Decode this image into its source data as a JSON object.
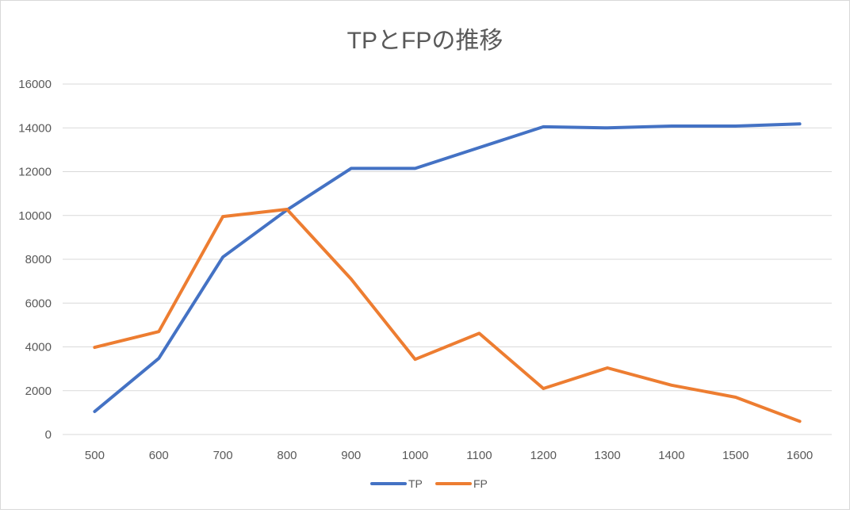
{
  "chart_data": {
    "type": "line",
    "title": "TPとFPの推移",
    "xlabel": "",
    "ylabel": "",
    "categories": [
      "500",
      "600",
      "700",
      "800",
      "900",
      "1000",
      "1100",
      "1200",
      "1300",
      "1400",
      "1500",
      "1600"
    ],
    "ylim": [
      0,
      16000
    ],
    "yticks": [
      "0",
      "2000",
      "4000",
      "6000",
      "8000",
      "10000",
      "12000",
      "14000",
      "16000"
    ],
    "grid": true,
    "legend": "bottom",
    "series": [
      {
        "name": "TP",
        "color": "#4472C4",
        "values": [
          1050,
          3480,
          8100,
          10250,
          12150,
          12150,
          13100,
          14050,
          14000,
          14080,
          14080,
          14180
        ]
      },
      {
        "name": "FP",
        "color": "#ED7D31",
        "values": [
          3980,
          4700,
          9950,
          10280,
          7100,
          3430,
          4620,
          2100,
          3040,
          2250,
          1700,
          600
        ]
      }
    ]
  }
}
